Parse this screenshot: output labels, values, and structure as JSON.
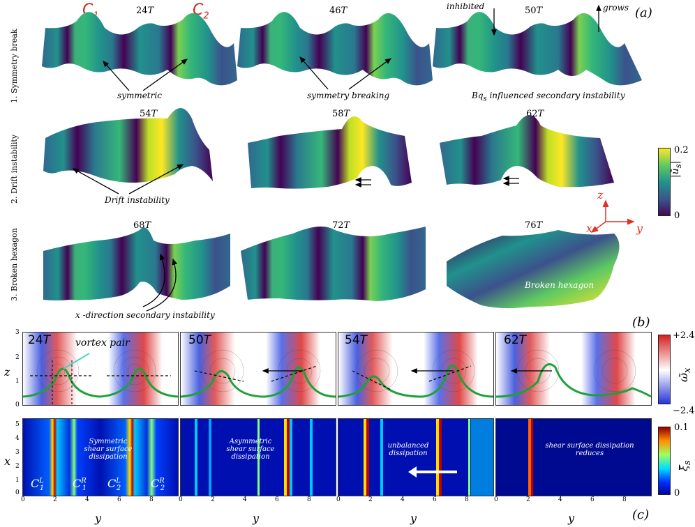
{
  "figure": {
    "panel_a_label": "(a)",
    "panel_b_label": "(b)",
    "panel_c_label": "(c)",
    "c1": "C",
    "c1_sub": "1",
    "c2": "C",
    "c2_sub": "2"
  },
  "rows": [
    {
      "label": "1. Symmetry break",
      "times": [
        "24",
        "46",
        "50"
      ]
    },
    {
      "label": "2. Drift instability",
      "times": [
        "54",
        "58",
        "62"
      ]
    },
    {
      "label": "3. Broken hexagon",
      "times": [
        "68",
        "72",
        "76"
      ]
    }
  ],
  "time_unit": "T",
  "annotations": {
    "symmetric": "symmetric",
    "symmetry_breaking": "symmetry breaking",
    "inhibited": "inhibited",
    "grows": "grows",
    "bq_prefix": "Bq",
    "bq_sub": "s",
    "bq_suffix": " influenced secondary instability",
    "drift": "Drift instability",
    "xdir": "x -direction secondary instability",
    "broken": "Broken hexagon"
  },
  "colorbar_a": {
    "max": "0.2",
    "min": "0",
    "label": "|ũ",
    "label_sub": "s",
    "label_end": "|"
  },
  "axes3d": {
    "z": "z",
    "x": "x",
    "y": "y"
  },
  "panel_b": {
    "ylabel": "z",
    "yticks": [
      "3",
      "2",
      "1",
      "0"
    ],
    "times": [
      "24",
      "50",
      "54",
      "62"
    ],
    "vortex_pair": "vortex pair",
    "colorbar": {
      "max": "+2.4",
      "min": "−2.4",
      "label": "ω̃",
      "label_sub": "x"
    }
  },
  "panel_c": {
    "ylabel": "x",
    "yticks": [
      "5",
      "4",
      "3",
      "2",
      "1",
      "0"
    ],
    "xlabel": "y",
    "xticks": [
      "0",
      "2",
      "4",
      "6",
      "8"
    ],
    "texts": [
      "Symmetric\nshear surface\ndissipation",
      "Asymmetric\nshear surface\ndissipation",
      "unbalanced\ndissipation",
      "shear surface dissipation\nreduces"
    ],
    "labels": [
      "C",
      "C",
      "C",
      "C"
    ],
    "subs": [
      "1",
      "1",
      "2",
      "2"
    ],
    "sups": [
      "L",
      "R",
      "L",
      "R"
    ],
    "colorbar": {
      "max": "0.1",
      "min": "0",
      "label": "ξ̃",
      "label_sub": "s"
    }
  }
}
